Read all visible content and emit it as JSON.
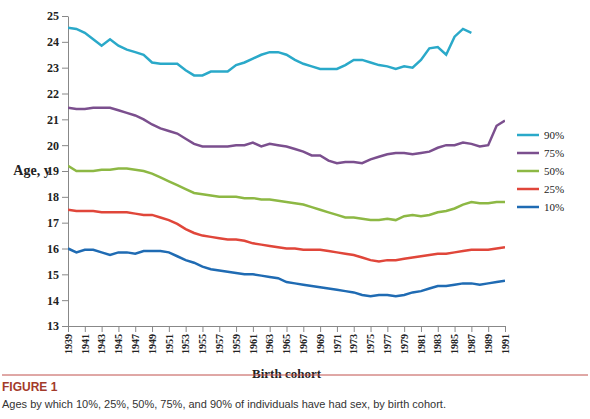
{
  "chart_data": {
    "type": "line",
    "title": "FIGURE 1",
    "subtitle": "Ages by which 10%, 25%, 50%, 75%, and 90% of individuals have had sex, by birth cohort.",
    "x_label": "Birth cohort",
    "y_label": "Age, y",
    "x": [
      1939,
      1940,
      1941,
      1942,
      1943,
      1944,
      1945,
      1946,
      1947,
      1948,
      1949,
      1950,
      1951,
      1952,
      1953,
      1954,
      1955,
      1956,
      1957,
      1958,
      1959,
      1960,
      1961,
      1962,
      1963,
      1964,
      1965,
      1966,
      1967,
      1968,
      1969,
      1970,
      1971,
      1972,
      1973,
      1974,
      1975,
      1976,
      1977,
      1978,
      1979,
      1980,
      1981,
      1982,
      1983,
      1984,
      1985,
      1986,
      1987,
      1988,
      1989,
      1990,
      1991
    ],
    "xlim": [
      1939,
      1991
    ],
    "xticks": [
      1939,
      1941,
      1943,
      1945,
      1947,
      1949,
      1951,
      1953,
      1955,
      1957,
      1959,
      1961,
      1963,
      1965,
      1967,
      1969,
      1971,
      1973,
      1975,
      1977,
      1979,
      1981,
      1983,
      1985,
      1987,
      1989,
      1991
    ],
    "ylim": [
      13,
      25
    ],
    "yticks": [
      13,
      14,
      15,
      16,
      17,
      18,
      19,
      20,
      21,
      22,
      23,
      24,
      25
    ],
    "grid": false,
    "legend": "right",
    "series": [
      {
        "name": "90%",
        "color": "#2aa9c9",
        "values": [
          24.55,
          24.5,
          24.35,
          24.1,
          23.85,
          24.1,
          23.85,
          23.7,
          23.6,
          23.5,
          23.2,
          23.15,
          23.15,
          23.15,
          22.9,
          22.7,
          22.7,
          22.85,
          22.85,
          22.85,
          23.1,
          23.2,
          23.35,
          23.5,
          23.6,
          23.6,
          23.5,
          23.3,
          23.15,
          23.05,
          22.95,
          22.95,
          22.95,
          23.1,
          23.3,
          23.3,
          23.2,
          23.1,
          23.05,
          22.95,
          23.05,
          23.0,
          23.3,
          23.75,
          23.8,
          23.5,
          24.2,
          24.5,
          24.35,
          null,
          null,
          null,
          null
        ]
      },
      {
        "name": "75%",
        "color": "#7b4f8e",
        "values": [
          21.45,
          21.4,
          21.4,
          21.45,
          21.45,
          21.45,
          21.35,
          21.25,
          21.15,
          21.0,
          20.8,
          20.65,
          20.55,
          20.45,
          20.25,
          20.05,
          19.95,
          19.95,
          19.95,
          19.95,
          20.0,
          20.0,
          20.1,
          19.95,
          20.05,
          20.0,
          19.95,
          19.85,
          19.75,
          19.6,
          19.6,
          19.4,
          19.3,
          19.35,
          19.35,
          19.3,
          19.45,
          19.55,
          19.65,
          19.7,
          19.7,
          19.65,
          19.7,
          19.75,
          19.9,
          20.0,
          20.0,
          20.1,
          20.05,
          19.95,
          20.0,
          20.75,
          20.95
        ]
      },
      {
        "name": "50%",
        "color": "#8db844",
        "values": [
          19.2,
          19.0,
          19.0,
          19.0,
          19.05,
          19.05,
          19.1,
          19.1,
          19.05,
          19.0,
          18.9,
          18.75,
          18.6,
          18.45,
          18.3,
          18.15,
          18.1,
          18.05,
          18.0,
          18.0,
          18.0,
          17.95,
          17.95,
          17.9,
          17.9,
          17.85,
          17.8,
          17.75,
          17.7,
          17.6,
          17.5,
          17.4,
          17.3,
          17.2,
          17.2,
          17.15,
          17.1,
          17.1,
          17.15,
          17.1,
          17.25,
          17.3,
          17.25,
          17.3,
          17.4,
          17.45,
          17.55,
          17.7,
          17.8,
          17.75,
          17.75,
          17.8,
          17.8
        ]
      },
      {
        "name": "25%",
        "color": "#e0463a",
        "values": [
          17.5,
          17.45,
          17.45,
          17.45,
          17.4,
          17.4,
          17.4,
          17.4,
          17.35,
          17.3,
          17.3,
          17.2,
          17.1,
          16.95,
          16.75,
          16.6,
          16.5,
          16.45,
          16.4,
          16.35,
          16.35,
          16.3,
          16.2,
          16.15,
          16.1,
          16.05,
          16.0,
          16.0,
          15.95,
          15.95,
          15.95,
          15.9,
          15.85,
          15.8,
          15.75,
          15.65,
          15.55,
          15.5,
          15.55,
          15.55,
          15.6,
          15.65,
          15.7,
          15.75,
          15.8,
          15.8,
          15.85,
          15.9,
          15.95,
          15.95,
          15.95,
          16.0,
          16.05
        ]
      },
      {
        "name": "10%",
        "color": "#1f6bb3",
        "values": [
          16.0,
          15.85,
          15.95,
          15.95,
          15.85,
          15.75,
          15.85,
          15.85,
          15.8,
          15.9,
          15.9,
          15.9,
          15.85,
          15.7,
          15.55,
          15.45,
          15.3,
          15.2,
          15.15,
          15.1,
          15.05,
          15.0,
          15.0,
          14.95,
          14.9,
          14.85,
          14.7,
          14.65,
          14.6,
          14.55,
          14.5,
          14.45,
          14.4,
          14.35,
          14.3,
          14.2,
          14.15,
          14.2,
          14.2,
          14.15,
          14.2,
          14.3,
          14.35,
          14.45,
          14.55,
          14.55,
          14.6,
          14.65,
          14.65,
          14.6,
          14.65,
          14.7,
          14.75
        ]
      }
    ]
  }
}
